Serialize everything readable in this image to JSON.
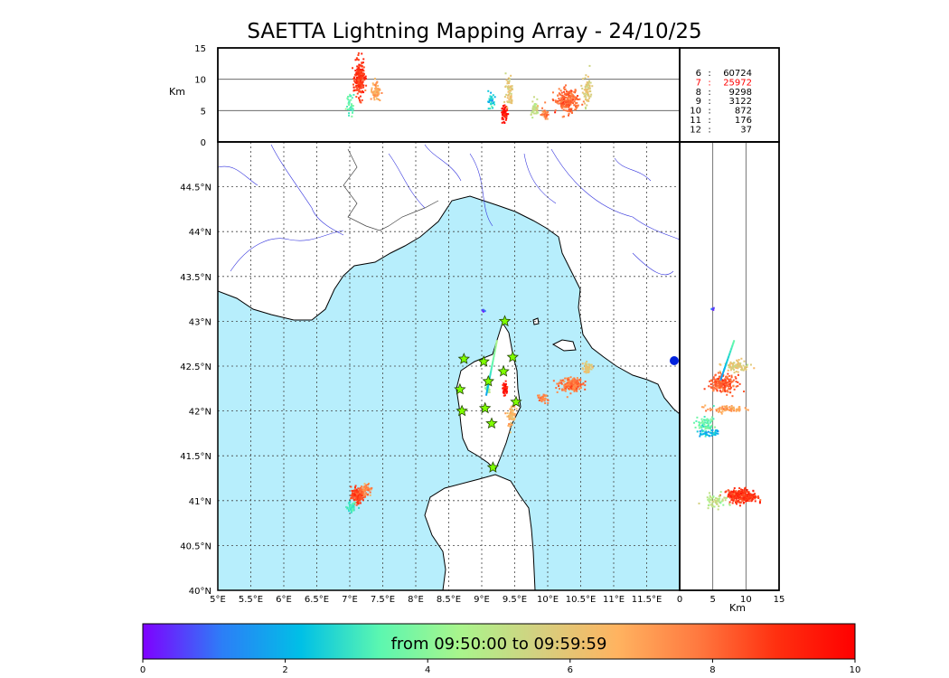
{
  "title": "SAETTA Lightning Mapping Array - 24/10/25",
  "colorbar": {
    "label": "from 09:50:00 to 09:59:59",
    "range": [
      0,
      10
    ],
    "ticks": [
      "0",
      "2",
      "4",
      "6",
      "8",
      "10"
    ],
    "colors": [
      "#7f00ff",
      "#2c7ef7",
      "#00c0e6",
      "#5cf7b0",
      "#a8f58c",
      "#d4d080",
      "#ffb360",
      "#ff7a40",
      "#ff3010",
      "#ff0000"
    ]
  },
  "colors": {
    "sea": "#b7eefc",
    "land": "#ffffff",
    "coast": "#000000",
    "rivers": "#3333dd",
    "station": "#7fff00"
  },
  "stations_counts": {
    "rows": [
      {
        "stations": "6",
        "sep": ":",
        "count": "60724",
        "color": "#000000"
      },
      {
        "stations": "7",
        "sep": ":",
        "count": "25972",
        "color": "#ff0000"
      },
      {
        "stations": "8",
        "sep": ":",
        "count": "9298",
        "color": "#000000"
      },
      {
        "stations": "9",
        "sep": ":",
        "count": "3122",
        "color": "#000000"
      },
      {
        "stations": "10",
        "sep": ":",
        "count": "872",
        "color": "#000000"
      },
      {
        "stations": "11",
        "sep": ":",
        "count": "176",
        "color": "#000000"
      },
      {
        "stations": "12",
        "sep": ":",
        "count": "37",
        "color": "#000000"
      }
    ]
  },
  "chart_data": [
    {
      "type": "scatter",
      "panel": "plan-view map",
      "xlim": [
        5.0,
        12.0
      ],
      "ylim": [
        40.0,
        45.0
      ],
      "x_tick_values": [
        5,
        5.5,
        6,
        6.5,
        7,
        7.5,
        8,
        8.5,
        9,
        9.5,
        10,
        10.5,
        11,
        11.5
      ],
      "x_tick_labels": [
        "5°E",
        "5.5°E",
        "6°E",
        "6.5°E",
        "7°E",
        "7.5°E",
        "8°E",
        "8.5°E",
        "9°E",
        "9.5°E",
        "10°E",
        "10.5°E",
        "11°E",
        "11.5°E"
      ],
      "y_tick_values": [
        40,
        40.5,
        41,
        41.5,
        42,
        42.5,
        43,
        43.5,
        44,
        44.5
      ],
      "y_tick_labels": [
        "40°N",
        "40.5°N",
        "41°N",
        "41.5°N",
        "42°N",
        "42.5°N",
        "43°N",
        "43.5°N",
        "44°N",
        "44.5°N"
      ],
      "grid": true,
      "stations": [
        [
          8.73,
          42.58
        ],
        [
          9.35,
          43.0
        ],
        [
          9.47,
          42.6
        ],
        [
          9.03,
          42.55
        ],
        [
          9.1,
          42.33
        ],
        [
          9.33,
          42.44
        ],
        [
          8.67,
          42.24
        ],
        [
          8.7,
          42.0
        ],
        [
          9.05,
          42.03
        ],
        [
          9.52,
          42.1
        ],
        [
          9.15,
          41.86
        ],
        [
          9.17,
          41.37
        ]
      ],
      "clusters": [
        {
          "lon": 7.12,
          "lat": 41.06,
          "time": 8.6,
          "spread": [
            0.08,
            0.07
          ],
          "n": 160
        },
        {
          "lon": 7.25,
          "lat": 41.12,
          "time": 7.5,
          "spread": [
            0.07,
            0.05
          ],
          "n": 60
        },
        {
          "lon": 7.02,
          "lat": 40.93,
          "time": 3.0,
          "spread": [
            0.06,
            0.05
          ],
          "n": 50
        },
        {
          "lon": 10.35,
          "lat": 42.3,
          "time": 7.8,
          "spread": [
            0.15,
            0.06
          ],
          "n": 220
        },
        {
          "lon": 10.6,
          "lat": 42.48,
          "time": 5.8,
          "spread": [
            0.06,
            0.05
          ],
          "n": 50
        },
        {
          "lon": 9.93,
          "lat": 42.14,
          "time": 7.6,
          "spread": [
            0.06,
            0.04
          ],
          "n": 40
        },
        {
          "lon": 9.35,
          "lat": 42.25,
          "time": 9.5,
          "spread": [
            0.03,
            0.06
          ],
          "n": 45
        },
        {
          "lon": 9.45,
          "lat": 41.95,
          "time": 6.5,
          "spread": [
            0.05,
            0.1
          ],
          "n": 70
        },
        {
          "lon": 9.1,
          "lat": 42.25,
          "time": 4.2,
          "spread": [
            0.02,
            0.05
          ],
          "n": 25
        },
        {
          "lon": 9.02,
          "lat": 43.12,
          "time": 0.4,
          "spread": [
            0.02,
            0.01
          ],
          "n": 8
        }
      ],
      "tracks": [
        {
          "from": [
            9.07,
            42.18
          ],
          "to": [
            9.23,
            42.78
          ],
          "t0": 1.8,
          "t1": 4.6
        }
      ]
    },
    {
      "type": "scatter",
      "panel": "longitude-altitude",
      "xlim": [
        5.0,
        12.0
      ],
      "ylim": [
        0,
        15
      ],
      "ylabel": "Km",
      "y_tick_values": [
        0,
        5,
        10,
        15
      ],
      "y_tick_labels": [
        "0",
        "5",
        "10",
        "15"
      ],
      "gridlines_y": [
        5,
        10
      ],
      "clusters": [
        {
          "lon": 7.15,
          "alt": 10.0,
          "time": 8.8,
          "spread": [
            0.06,
            2.8
          ],
          "n": 220
        },
        {
          "lon": 7.4,
          "alt": 8.0,
          "time": 6.8,
          "spread": [
            0.05,
            1.5
          ],
          "n": 70
        },
        {
          "lon": 7.0,
          "alt": 6.0,
          "time": 3.2,
          "spread": [
            0.05,
            1.5
          ],
          "n": 40
        },
        {
          "lon": 9.35,
          "alt": 4.5,
          "time": 9.5,
          "spread": [
            0.04,
            1.2
          ],
          "n": 60
        },
        {
          "lon": 9.42,
          "alt": 8.0,
          "time": 6.0,
          "spread": [
            0.05,
            3.0
          ],
          "n": 60
        },
        {
          "lon": 9.15,
          "alt": 6.5,
          "time": 2.5,
          "spread": [
            0.04,
            1.5
          ],
          "n": 30
        },
        {
          "lon": 9.8,
          "alt": 5.5,
          "time": 5.2,
          "spread": [
            0.05,
            1.5
          ],
          "n": 40
        },
        {
          "lon": 10.3,
          "alt": 6.5,
          "time": 8.0,
          "spread": [
            0.15,
            1.8
          ],
          "n": 200
        },
        {
          "lon": 10.6,
          "alt": 8.0,
          "time": 5.8,
          "spread": [
            0.05,
            2.5
          ],
          "n": 70
        },
        {
          "lon": 9.95,
          "alt": 4.5,
          "time": 7.6,
          "spread": [
            0.05,
            1.0
          ],
          "n": 30
        }
      ]
    },
    {
      "type": "scatter",
      "panel": "altitude-latitude",
      "xlim": [
        0,
        15
      ],
      "ylim": [
        40.0,
        45.0
      ],
      "xlabel": "Km",
      "x_tick_values": [
        0,
        5,
        10,
        15
      ],
      "x_tick_labels": [
        "0",
        "5",
        "10",
        "15"
      ],
      "gridlines_x": [
        5,
        10
      ],
      "clusters": [
        {
          "alt": 9.5,
          "lat": 41.05,
          "time": 8.8,
          "spread": [
            2.2,
            0.06
          ],
          "n": 260
        },
        {
          "alt": 5.5,
          "lat": 41.0,
          "time": 5.0,
          "spread": [
            1.8,
            0.06
          ],
          "n": 60
        },
        {
          "alt": 6.5,
          "lat": 42.3,
          "time": 8.2,
          "spread": [
            2.0,
            0.08
          ],
          "n": 200
        },
        {
          "alt": 8.5,
          "lat": 42.5,
          "time": 5.8,
          "spread": [
            2.0,
            0.05
          ],
          "n": 90
        },
        {
          "alt": 4.0,
          "lat": 41.85,
          "time": 3.5,
          "spread": [
            1.2,
            0.08
          ],
          "n": 80
        },
        {
          "alt": 7.0,
          "lat": 42.02,
          "time": 7.0,
          "spread": [
            3.0,
            0.03
          ],
          "n": 80
        },
        {
          "alt": 4.5,
          "lat": 41.75,
          "time": 2.0,
          "spread": [
            1.5,
            0.03
          ],
          "n": 40
        },
        {
          "alt": 5.0,
          "lat": 43.14,
          "time": 0.3,
          "spread": [
            0.5,
            0.01
          ],
          "n": 6
        }
      ],
      "tracks": [
        {
          "from": [
            6.2,
            42.35
          ],
          "to": [
            8.2,
            42.78
          ],
          "t0": 1.5,
          "t1": 3.5
        }
      ]
    }
  ]
}
